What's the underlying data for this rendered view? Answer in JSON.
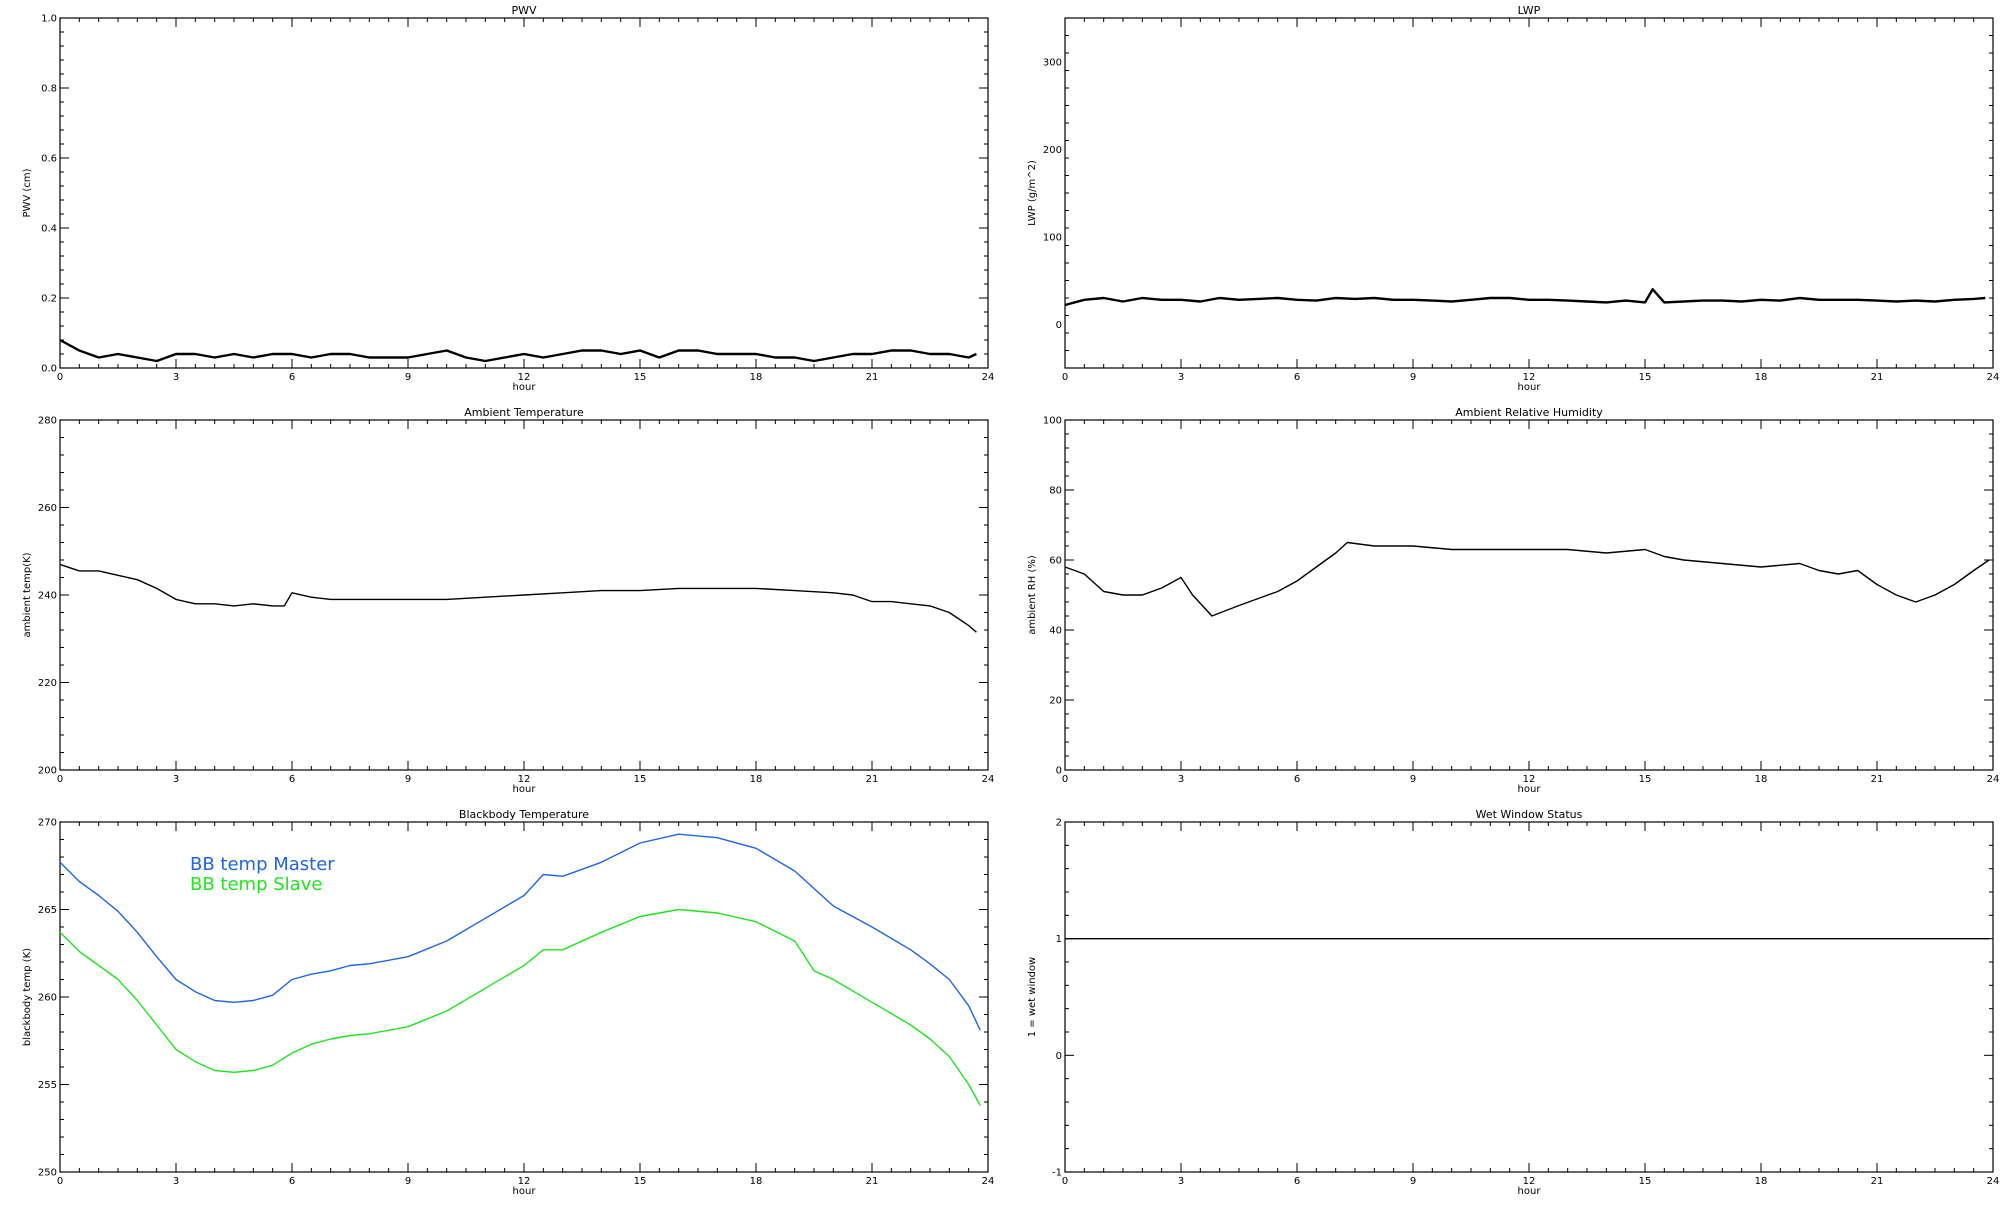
{
  "chart_data": [
    {
      "type": "line",
      "title": "PWV",
      "xlabel": "hour",
      "ylabel": "PWV (cm)",
      "xlim": [
        0,
        24
      ],
      "ylim": [
        0,
        1.0
      ],
      "xticks": [
        0,
        3,
        6,
        9,
        12,
        15,
        18,
        21,
        24
      ],
      "xtick_labels": [
        "0",
        "3",
        "6",
        "9",
        "12",
        "15",
        "18",
        "21",
        "24"
      ],
      "yticks": [
        0,
        0.2,
        0.4,
        0.6,
        0.8,
        1.0
      ],
      "ytick_labels": [
        "0.0",
        "0.2",
        "0.4",
        "0.6",
        "0.8",
        "1.0"
      ],
      "series": [
        {
          "color": "#000000",
          "x": [
            0,
            0.5,
            1,
            1.5,
            2,
            2.5,
            3,
            3.5,
            4,
            4.5,
            5,
            5.5,
            6,
            6.5,
            7,
            7.5,
            8,
            8.5,
            9,
            9.5,
            10,
            10.5,
            11,
            11.5,
            12,
            12.5,
            13,
            13.5,
            14,
            14.5,
            15,
            15.5,
            16,
            16.5,
            17,
            17.5,
            18,
            18.5,
            19,
            19.5,
            20,
            20.5,
            21,
            21.5,
            22,
            22.5,
            23,
            23.5,
            23.7
          ],
          "y": [
            0.08,
            0.05,
            0.03,
            0.04,
            0.03,
            0.02,
            0.04,
            0.04,
            0.03,
            0.04,
            0.03,
            0.04,
            0.04,
            0.03,
            0.04,
            0.04,
            0.03,
            0.03,
            0.03,
            0.04,
            0.05,
            0.03,
            0.02,
            0.03,
            0.04,
            0.03,
            0.04,
            0.05,
            0.05,
            0.04,
            0.05,
            0.03,
            0.05,
            0.05,
            0.04,
            0.04,
            0.04,
            0.03,
            0.03,
            0.02,
            0.03,
            0.04,
            0.04,
            0.05,
            0.05,
            0.04,
            0.04,
            0.03,
            0.04
          ]
        }
      ]
    },
    {
      "type": "line",
      "title": "LWP",
      "xlabel": "hour",
      "ylabel": "LWP (g/m^2)",
      "xlim": [
        0,
        24
      ],
      "ylim": [
        -50,
        350
      ],
      "xticks": [
        0,
        3,
        6,
        9,
        12,
        15,
        18,
        21,
        24
      ],
      "xtick_labels": [
        "0",
        "3",
        "6",
        "9",
        "12",
        "15",
        "18",
        "21",
        "24"
      ],
      "yticks": [
        0,
        100,
        200,
        300
      ],
      "ytick_labels": [
        "0",
        "100",
        "200",
        "300"
      ],
      "series": [
        {
          "color": "#000000",
          "x": [
            0,
            0.5,
            1,
            1.5,
            2,
            2.5,
            3,
            3.5,
            4,
            4.5,
            5,
            5.5,
            6,
            6.5,
            7,
            7.5,
            8,
            8.5,
            9,
            9.5,
            10,
            10.5,
            11,
            11.5,
            12,
            12.5,
            13,
            13.5,
            14,
            14.5,
            15,
            15.2,
            15.5,
            16,
            16.5,
            17,
            17.5,
            18,
            18.5,
            19,
            19.5,
            20,
            20.5,
            21,
            21.5,
            22,
            22.5,
            23,
            23.5,
            23.8
          ],
          "y": [
            22,
            28,
            30,
            26,
            30,
            28,
            28,
            26,
            30,
            28,
            29,
            30,
            28,
            27,
            30,
            29,
            30,
            28,
            28,
            27,
            26,
            28,
            30,
            30,
            28,
            28,
            27,
            26,
            25,
            27,
            25,
            40,
            25,
            26,
            27,
            27,
            26,
            28,
            27,
            30,
            28,
            28,
            28,
            27,
            26,
            27,
            26,
            28,
            29,
            30
          ]
        }
      ]
    },
    {
      "type": "line",
      "title": "Ambient Temperature",
      "xlabel": "hour",
      "ylabel": "ambient temp(K)",
      "xlim": [
        0,
        24
      ],
      "ylim": [
        200,
        280
      ],
      "xticks": [
        0,
        3,
        6,
        9,
        12,
        15,
        18,
        21,
        24
      ],
      "xtick_labels": [
        "0",
        "3",
        "6",
        "9",
        "12",
        "15",
        "18",
        "21",
        "24"
      ],
      "yticks": [
        200,
        220,
        240,
        260,
        280
      ],
      "ytick_labels": [
        "200",
        "220",
        "240",
        "260",
        "280"
      ],
      "series": [
        {
          "color": "#000000",
          "x": [
            0,
            0.5,
            1,
            1.5,
            2,
            2.5,
            3,
            3.5,
            4,
            4.5,
            5,
            5.5,
            5.8,
            6,
            6.5,
            7,
            7.5,
            8,
            9,
            10,
            11,
            12,
            13,
            14,
            15,
            16,
            17,
            18,
            19,
            20,
            20.5,
            21,
            21.5,
            22,
            22.5,
            23,
            23.5,
            23.7
          ],
          "y": [
            247,
            245.5,
            245.5,
            244.5,
            243.5,
            241.5,
            239,
            238,
            238,
            237.5,
            238,
            237.5,
            237.5,
            240.5,
            239.5,
            239,
            239,
            239,
            239,
            239,
            239.5,
            240,
            240.5,
            241,
            241,
            241.5,
            241.5,
            241.5,
            241,
            240.5,
            240,
            238.5,
            238.5,
            238,
            237.5,
            236,
            233,
            231.5
          ]
        }
      ]
    },
    {
      "type": "line",
      "title": "Ambient Relative Humidity",
      "xlabel": "hour",
      "ylabel": "ambient RH (%)",
      "xlim": [
        0,
        24
      ],
      "ylim": [
        0,
        100
      ],
      "xticks": [
        0,
        3,
        6,
        9,
        12,
        15,
        18,
        21,
        24
      ],
      "xtick_labels": [
        "0",
        "3",
        "6",
        "9",
        "12",
        "15",
        "18",
        "21",
        "24"
      ],
      "yticks": [
        0,
        20,
        40,
        60,
        80,
        100
      ],
      "ytick_labels": [
        "0",
        "20",
        "40",
        "60",
        "80",
        "100"
      ],
      "series": [
        {
          "color": "#000000",
          "x": [
            0,
            0.5,
            1,
            1.5,
            2,
            2.5,
            3,
            3.3,
            3.8,
            4.5,
            5,
            5.5,
            6,
            6.5,
            7,
            7.3,
            8,
            9,
            10,
            11,
            12,
            13,
            14,
            15,
            15.5,
            16,
            17,
            18,
            19,
            19.5,
            20,
            20.5,
            21,
            21.5,
            22,
            22.5,
            23,
            23.5,
            23.9
          ],
          "y": [
            58,
            56,
            51,
            50,
            50,
            52,
            55,
            50,
            44,
            47,
            49,
            51,
            54,
            58,
            62,
            65,
            64,
            64,
            63,
            63,
            63,
            63,
            62,
            63,
            61,
            60,
            59,
            58,
            59,
            57,
            56,
            57,
            53,
            50,
            48,
            50,
            53,
            57,
            60
          ]
        }
      ]
    },
    {
      "type": "line",
      "title": "Blackbody Temperature",
      "xlabel": "hour",
      "ylabel": "blackbody temp (K)",
      "xlim": [
        0,
        24
      ],
      "ylim": [
        250,
        270
      ],
      "xticks": [
        0,
        3,
        6,
        9,
        12,
        15,
        18,
        21,
        24
      ],
      "xtick_labels": [
        "0",
        "3",
        "6",
        "9",
        "12",
        "15",
        "18",
        "21",
        "24"
      ],
      "yticks": [
        250,
        255,
        260,
        265,
        270
      ],
      "ytick_labels": [
        "250",
        "255",
        "260",
        "265",
        "270"
      ],
      "legend": [
        {
          "label": "BB temp Master",
          "color": "#1e64e6"
        },
        {
          "label": "BB temp Slave",
          "color": "#1ee61e"
        }
      ],
      "series": [
        {
          "name": "BB temp Master",
          "color": "#1e64e6",
          "x": [
            0,
            0.5,
            1,
            1.5,
            2,
            2.5,
            3,
            3.5,
            4,
            4.5,
            5,
            5.5,
            6,
            6.5,
            7,
            7.5,
            8,
            9,
            10,
            11,
            12,
            12.5,
            13,
            14,
            15,
            16,
            17,
            18,
            19,
            20,
            21,
            22,
            22.5,
            23,
            23.5,
            23.8
          ],
          "y": [
            267.7,
            266.6,
            265.8,
            264.9,
            263.7,
            262.3,
            261,
            260.3,
            259.8,
            259.7,
            259.8,
            260.1,
            261,
            261.3,
            261.5,
            261.8,
            261.9,
            262.3,
            263.2,
            264.5,
            265.8,
            267,
            266.9,
            267.7,
            268.8,
            269.3,
            269.1,
            268.5,
            267.2,
            265.2,
            264,
            262.7,
            261.9,
            261,
            259.5,
            258.1
          ]
        },
        {
          "name": "BB temp Slave",
          "color": "#1ee61e",
          "x": [
            0,
            0.5,
            1,
            1.5,
            2,
            2.5,
            3,
            3.5,
            4,
            4.5,
            5,
            5.5,
            6,
            6.5,
            7,
            7.5,
            8,
            9,
            10,
            11,
            12,
            12.5,
            13,
            14,
            15,
            16,
            17,
            18,
            19,
            19.5,
            20,
            21,
            22,
            22.5,
            23,
            23.5,
            23.8
          ],
          "y": [
            263.7,
            262.6,
            261.8,
            261,
            259.8,
            258.4,
            257,
            256.3,
            255.8,
            255.7,
            255.8,
            256.1,
            256.8,
            257.3,
            257.6,
            257.8,
            257.9,
            258.3,
            259.2,
            260.5,
            261.8,
            262.7,
            262.7,
            263.7,
            264.6,
            265,
            264.8,
            264.3,
            263.2,
            261.5,
            261,
            259.7,
            258.4,
            257.6,
            256.6,
            255,
            253.8
          ]
        }
      ]
    },
    {
      "type": "line",
      "title": "Wet Window Status",
      "xlabel": "hour",
      "ylabel": "1 = wet window",
      "xlim": [
        0,
        24
      ],
      "ylim": [
        -1,
        2
      ],
      "xticks": [
        0,
        3,
        6,
        9,
        12,
        15,
        18,
        21,
        24
      ],
      "xtick_labels": [
        "0",
        "3",
        "6",
        "9",
        "12",
        "15",
        "18",
        "21",
        "24"
      ],
      "yticks": [
        -1,
        0,
        1,
        2
      ],
      "ytick_labels": [
        "-1",
        "0",
        "1",
        "2"
      ],
      "series": [
        {
          "color": "#000000",
          "x": [
            0,
            23.9
          ],
          "y": [
            1,
            1
          ]
        }
      ]
    }
  ]
}
